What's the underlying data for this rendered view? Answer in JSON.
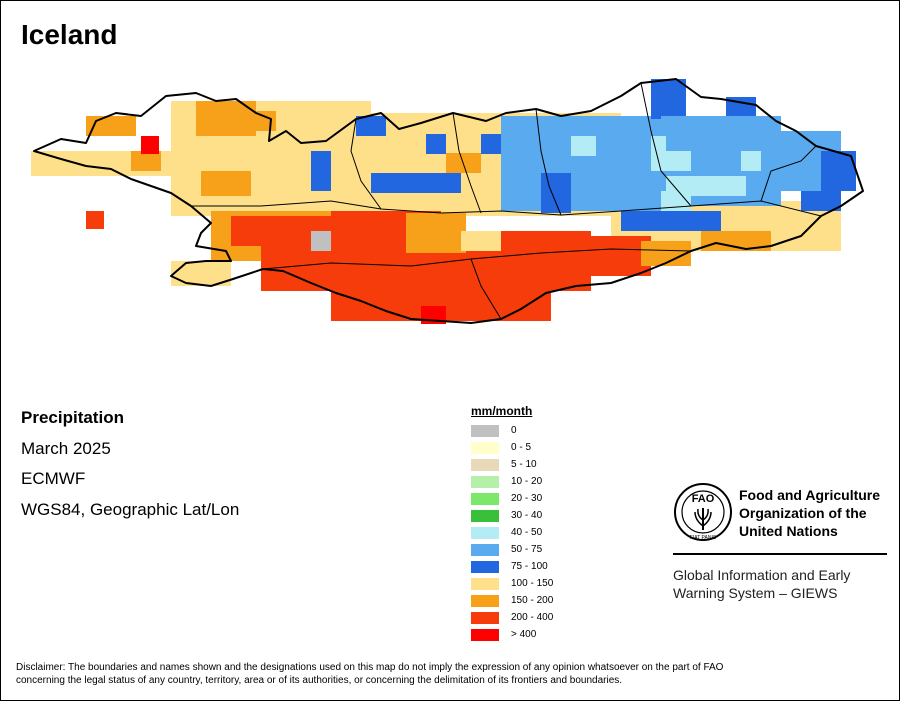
{
  "title": "Iceland",
  "product": "Precipitation",
  "period": "March 2025",
  "source": "ECMWF",
  "projection": "WGS84, Geographic Lat/Lon",
  "legend": {
    "title": "mm/month",
    "classes": [
      {
        "label": "0",
        "color": "#c0c0c0"
      },
      {
        "label": "0 - 5",
        "color": "#ffffcc"
      },
      {
        "label": "5 - 10",
        "color": "#ead9b8"
      },
      {
        "label": "10 - 20",
        "color": "#b4f0a8"
      },
      {
        "label": "20 - 30",
        "color": "#7ce86a"
      },
      {
        "label": "30 - 40",
        "color": "#39c03a"
      },
      {
        "label": "40 - 50",
        "color": "#b3ecf5"
      },
      {
        "label": "50 - 75",
        "color": "#5aaaf0"
      },
      {
        "label": "75 - 100",
        "color": "#2266e0"
      },
      {
        "label": "100 - 150",
        "color": "#ffe08a"
      },
      {
        "label": "150 - 200",
        "color": "#f7a11a"
      },
      {
        "label": "200 - 400",
        "color": "#f53c0a"
      },
      {
        "label": "> 400",
        "color": "#ff0000"
      }
    ]
  },
  "org": {
    "name_line1": "Food and Agriculture",
    "name_line2": "Organization of the",
    "name_line3": "United Nations",
    "logo_text": "FAO",
    "logo_motto": "FIAT PANIS",
    "system_line1": "Global Information and Early",
    "system_line2": "Warning System – GIEWS"
  },
  "disclaimer_line1": "Disclaimer: The boundaries and names shown and the designations used on this map do not imply the expression of any opinion whatsoever on the part of FAO",
  "disclaimer_line2": "concerning the legal status of any country, territory, area or of its authorities, or concerning the delimitation of its frontiers and boundaries."
}
